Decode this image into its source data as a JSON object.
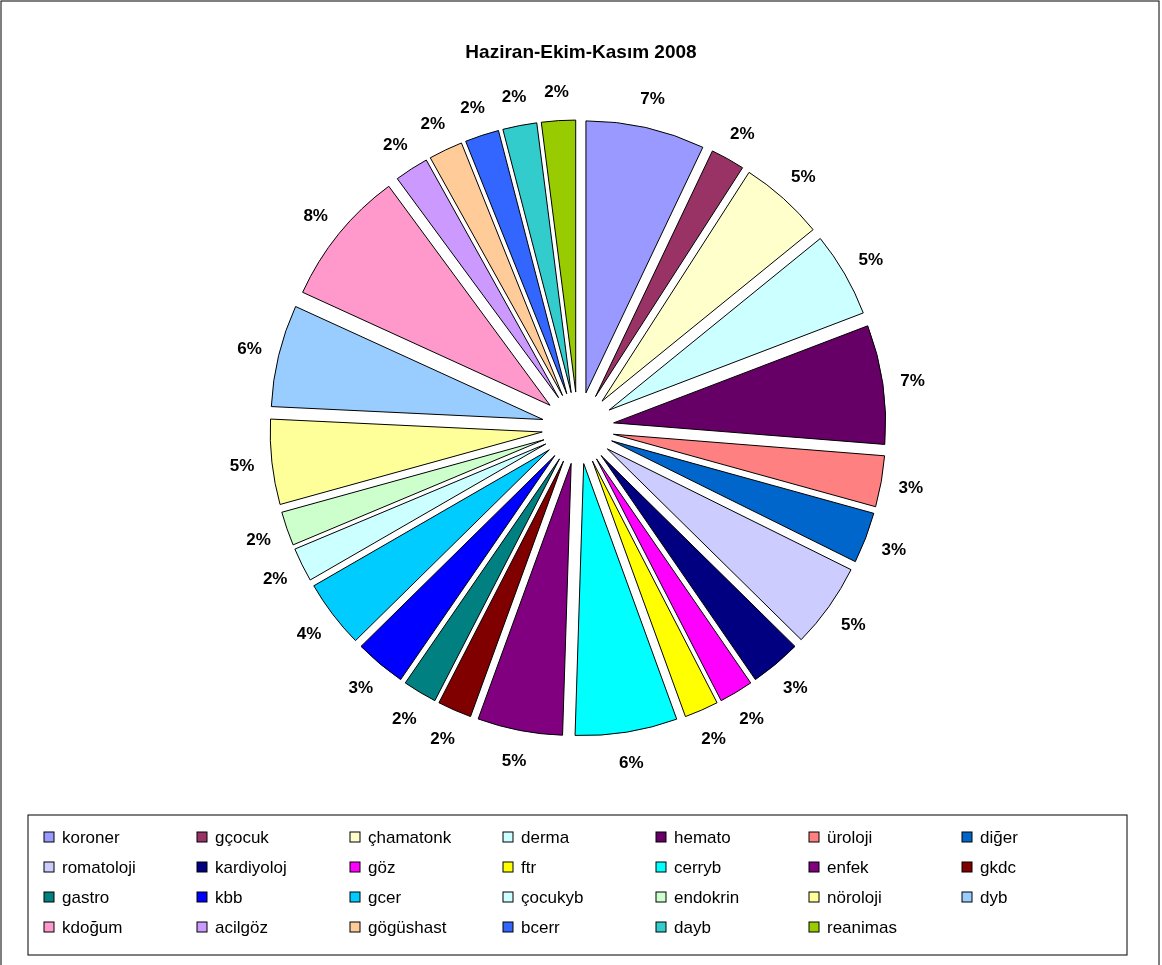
{
  "chart_data": {
    "type": "pie",
    "title": "Haziran-Ekim-Kasım 2008",
    "categories": [
      "koroner",
      "gçocuk",
      "çhamatonk",
      "derma",
      "hemato",
      "üroloji",
      "diğer",
      "romatoloji",
      "kardiyoloj",
      "göz",
      "ftr",
      "cerryb",
      "enfek",
      "gkdc",
      "gastro",
      "kbb",
      "gcer",
      "çocukyb",
      "endokrin",
      "nöroloji",
      "dyb",
      "kdoğum",
      "acilgöz",
      "gögüshast",
      "bcerr",
      "dayb",
      "reanimas"
    ],
    "values": [
      7,
      2,
      5,
      5,
      7,
      3,
      3,
      5,
      3,
      2,
      2,
      6,
      5,
      2,
      2,
      3,
      4,
      2,
      2,
      5,
      6,
      8,
      2,
      2,
      2,
      2,
      2
    ],
    "colors": [
      "#9999ff",
      "#993366",
      "#ffffcc",
      "#ccffff",
      "#660066",
      "#ff8080",
      "#0066cc",
      "#ccccff",
      "#000080",
      "#ff00ff",
      "#ffff00",
      "#00ffff",
      "#800080",
      "#800000",
      "#008080",
      "#0000ff",
      "#00ccff",
      "#ccffff",
      "#ccffcc",
      "#ffff99",
      "#99ccff",
      "#ff99cc",
      "#cc99ff",
      "#ffcc99",
      "#3366ff",
      "#33cccc",
      "#99cc00"
    ],
    "value_labels": [
      "7%",
      "2%",
      "5%",
      "5%",
      "7%",
      "3%",
      "3%",
      "5%",
      "3%",
      "2%",
      "2%",
      "6%",
      "5%",
      "2%",
      "2%",
      "3%",
      "4%",
      "2%",
      "2%",
      "5%",
      "6%",
      "8%",
      "2%",
      "2%",
      "2%",
      "2%",
      "2%"
    ],
    "legend": "bottom"
  }
}
